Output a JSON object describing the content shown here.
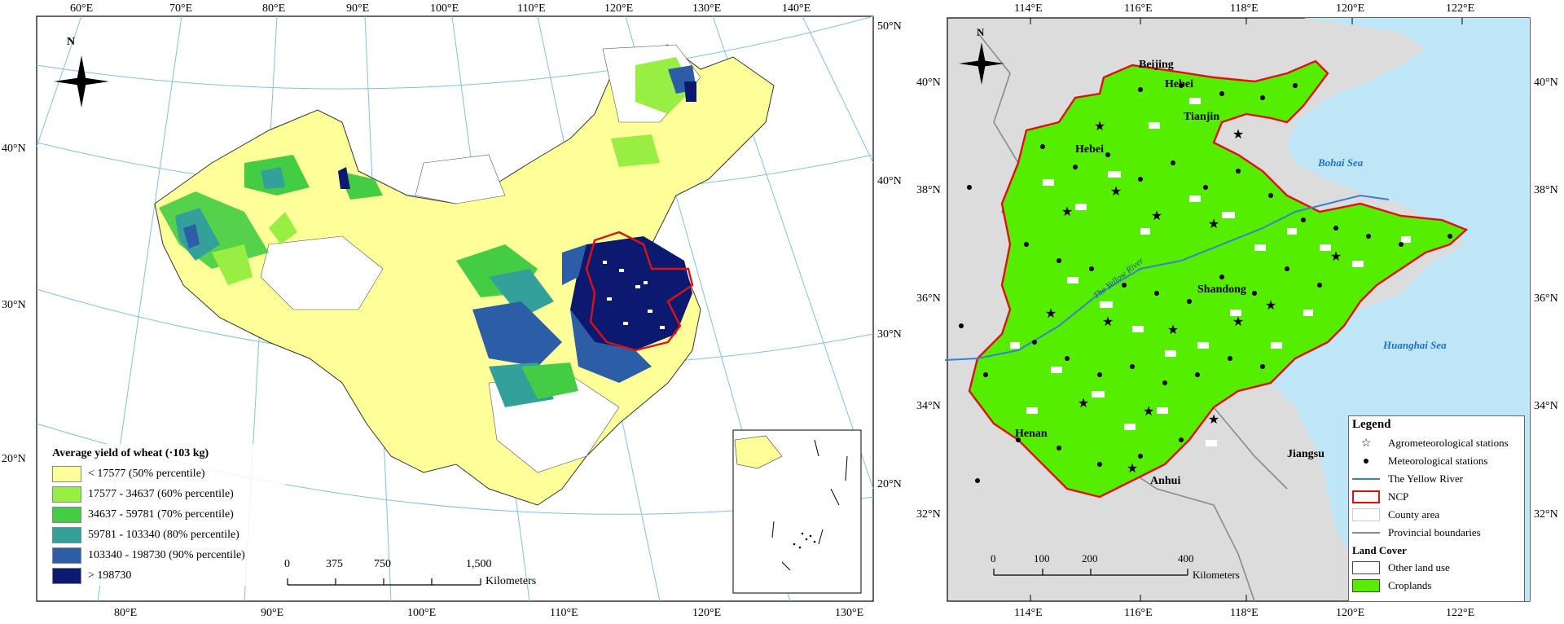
{
  "left_map": {
    "north_label": "N",
    "lon_top": [
      "60°E",
      "70°E",
      "80°E",
      "90°E",
      "100°E",
      "110°E",
      "120°E",
      "130°E",
      "140°E"
    ],
    "lon_bottom": [
      "80°E",
      "90°E",
      "100°E",
      "110°E",
      "120°E",
      "130°E"
    ],
    "lat_left": [
      "40°N",
      "30°N",
      "20°N"
    ],
    "lat_right": [
      "50°N",
      "40°N",
      "30°N",
      "20°N"
    ],
    "legend": {
      "title": "Average yield of wheat (·103 kg)",
      "items": [
        {
          "label": "< 17577 (50% percentile)",
          "color": "#ffff99"
        },
        {
          "label": "17577 - 34637 (60% percentile)",
          "color": "#99ee44"
        },
        {
          "label": "34637 - 59781 (70% percentile)",
          "color": "#44cc44"
        },
        {
          "label": "59781 - 103340 (80% percentile)",
          "color": "#33a199"
        },
        {
          "label": "103340 - 198730 (90% percentile)",
          "color": "#2c5ea8"
        },
        {
          "label": "> 198730",
          "color": "#0b1a70"
        }
      ]
    },
    "scale": {
      "ticks": [
        "0",
        "375",
        "750",
        "1,500"
      ],
      "unit": "Kilometers"
    }
  },
  "right_map": {
    "north_label": "N",
    "lon_top": [
      "114°E",
      "116°E",
      "118°E",
      "120°E",
      "122°E"
    ],
    "lon_bottom": [
      "114°E",
      "116°E",
      "118°E",
      "120°E",
      "122°E"
    ],
    "lat_left": [
      "40°N",
      "38°N",
      "36°N",
      "34°N",
      "32°N"
    ],
    "lat_right": [
      "40°N",
      "38°N",
      "36°N",
      "34°N",
      "32°N"
    ],
    "places": [
      "Beijing",
      "Hebei",
      "Tianjin",
      "Hebei",
      "Shandong",
      "Henan",
      "Anhui",
      "Jiangsu"
    ],
    "seas": [
      "Bohai Sea",
      "Huanghai Sea"
    ],
    "river_label": "The Yellow River",
    "scale": {
      "ticks": [
        "0",
        "100",
        "200",
        "400"
      ],
      "unit": "Kilometers"
    },
    "legend": {
      "title": "Legend",
      "items": [
        {
          "label": "Agrometeorological stations",
          "symbol": "star"
        },
        {
          "label": "Meteorological stations",
          "symbol": "dot"
        },
        {
          "label": "The Yellow River",
          "symbol": "river"
        },
        {
          "label": "NCP",
          "symbol": "ncp"
        },
        {
          "label": "County area",
          "symbol": "county"
        },
        {
          "label": "Provincial boundaries",
          "symbol": "province"
        }
      ],
      "land_cover_title": "Land Cover",
      "land_cover_items": [
        {
          "label": "Other land use",
          "color": "#ffffff"
        },
        {
          "label": "Croplands",
          "color": "#55ee00"
        }
      ]
    },
    "colors": {
      "sea": "#bfe6f7",
      "land": "#dcdcdc",
      "cropland": "#55ee00",
      "ncp_border": "#e01010",
      "river": "#3a7fd0"
    }
  }
}
